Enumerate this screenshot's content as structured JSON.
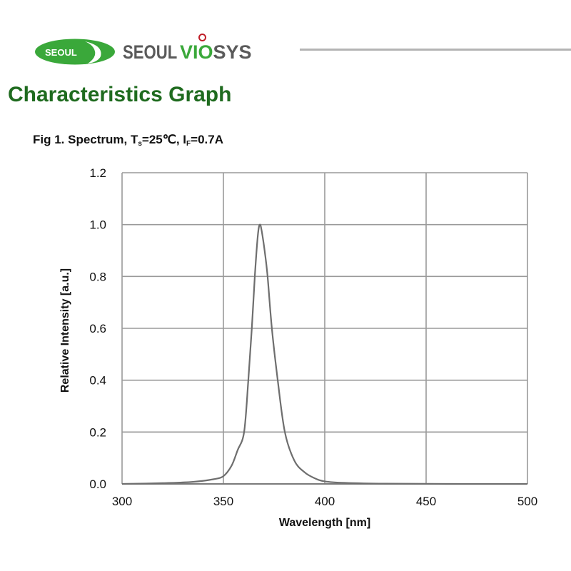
{
  "header": {
    "logo_badge_text": "SEOUL",
    "brand_part1": "SEOUL",
    "brand_part2": "VIO",
    "brand_part3": "SYS",
    "brand_colors": {
      "green": "#3aa83a",
      "gray": "#5a5a5a",
      "red_dot": "#c0202a"
    }
  },
  "page": {
    "title": "Characteristics Graph",
    "title_color": "#1f6b1f"
  },
  "figure": {
    "prefix": "Fig 1. Spectrum, T",
    "ts_sub": "s",
    "ts_value": "=25℃, I",
    "if_sub": "F",
    "if_value": "=0.7A"
  },
  "chart_data": {
    "type": "line",
    "title": "Fig 1. Spectrum, Ts=25℃, IF=0.7A",
    "xlabel": "Wavelength [nm]",
    "ylabel": "Relative Intensity [a.u.]",
    "xlim": [
      300,
      500
    ],
    "ylim": [
      0,
      1.2
    ],
    "xticks": [
      "300",
      "350",
      "400",
      "450",
      "500"
    ],
    "yticks": [
      "0.0",
      "0.2",
      "0.4",
      "0.6",
      "0.8",
      "1.0",
      "1.2"
    ],
    "grid": true,
    "legend": null,
    "series": [
      {
        "name": "Spectrum",
        "color": "#6e6e6e",
        "x": [
          300,
          320,
          335,
          345,
          350,
          354,
          357,
          360.2,
          362.3,
          364,
          365.5,
          367,
          368,
          369,
          370.5,
          371.8,
          373.9,
          376.8,
          380.3,
          385,
          390,
          395,
          400,
          410,
          430,
          460,
          500
        ],
        "y": [
          0.0,
          0.003,
          0.008,
          0.018,
          0.03,
          0.07,
          0.13,
          0.2,
          0.4,
          0.6,
          0.8,
          0.96,
          1.0,
          0.97,
          0.89,
          0.8,
          0.6,
          0.4,
          0.2,
          0.09,
          0.045,
          0.022,
          0.01,
          0.004,
          0.001,
          0.0,
          0.0
        ]
      }
    ]
  }
}
